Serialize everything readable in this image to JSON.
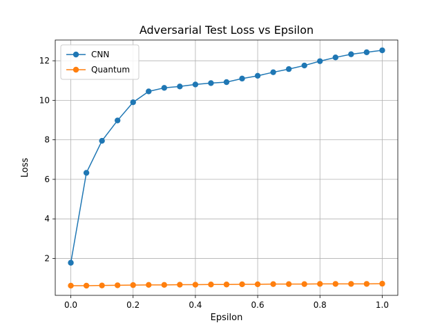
{
  "chart_data": {
    "type": "line",
    "title": "Adversarial Test Loss vs Epsilon",
    "xlabel": "Epsilon",
    "ylabel": "Loss",
    "xlim": [
      -0.05,
      1.05
    ],
    "ylim": [
      0.13,
      13.05
    ],
    "x_ticks": [
      0.0,
      0.2,
      0.4,
      0.6,
      0.8,
      1.0
    ],
    "x_tick_labels": [
      "0.0",
      "0.2",
      "0.4",
      "0.6",
      "0.8",
      "1.0"
    ],
    "y_ticks": [
      2,
      4,
      6,
      8,
      10,
      12
    ],
    "y_tick_labels": [
      "2",
      "4",
      "6",
      "8",
      "10",
      "12"
    ],
    "grid": true,
    "legend_position": "top-left",
    "x": [
      0.0,
      0.05,
      0.1,
      0.15,
      0.2,
      0.25,
      0.3,
      0.35,
      0.4,
      0.45,
      0.5,
      0.55,
      0.6,
      0.65,
      0.7,
      0.75,
      0.8,
      0.85,
      0.9,
      0.95,
      1.0
    ],
    "series": [
      {
        "name": "CNN",
        "color": "#1f77b4",
        "values": [
          1.78,
          6.33,
          7.95,
          8.98,
          9.9,
          10.45,
          10.63,
          10.7,
          10.8,
          10.87,
          10.92,
          11.1,
          11.24,
          11.42,
          11.58,
          11.76,
          11.98,
          12.17,
          12.33,
          12.43,
          12.53
        ]
      },
      {
        "name": "Quantum",
        "color": "#ff7f0e",
        "values": [
          0.62,
          0.62,
          0.63,
          0.64,
          0.65,
          0.66,
          0.66,
          0.67,
          0.67,
          0.68,
          0.68,
          0.69,
          0.69,
          0.7,
          0.7,
          0.7,
          0.71,
          0.71,
          0.71,
          0.71,
          0.72
        ]
      }
    ]
  }
}
